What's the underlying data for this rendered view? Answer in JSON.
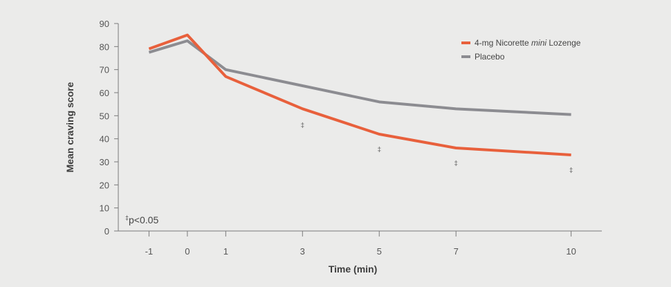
{
  "chart_data": {
    "type": "line",
    "title": "",
    "xlabel": "Time (min)",
    "ylabel": "Mean craving score",
    "x": [
      -1,
      0,
      1,
      3,
      5,
      7,
      10
    ],
    "x_ticks": [
      "-1",
      "0",
      "1",
      "3",
      "5",
      "7",
      "10"
    ],
    "y_ticks": [
      "0",
      "10",
      "20",
      "30",
      "40",
      "50",
      "60",
      "70",
      "80",
      "90"
    ],
    "xlim": [
      -1.8,
      10.8
    ],
    "ylim": [
      0,
      90
    ],
    "grid": false,
    "legend_position": "top-right",
    "series": [
      {
        "name": "4-mg Nicorette mini Lozenge",
        "name_parts": [
          {
            "text": "4-mg Nicorette ",
            "italic": false
          },
          {
            "text": "mini",
            "italic": true
          },
          {
            "text": " Lozenge",
            "italic": false
          }
        ],
        "color": "#e8603c",
        "values": [
          79,
          85,
          67,
          53,
          42,
          36,
          33
        ]
      },
      {
        "name": "Placebo",
        "name_parts": [
          {
            "text": "Placebo",
            "italic": false
          }
        ],
        "color": "#8c8c91",
        "values": [
          77.5,
          82.5,
          70,
          63,
          56,
          53,
          50.5
        ]
      }
    ],
    "significance": {
      "symbol": "‡",
      "at_x": [
        3,
        5,
        7,
        10
      ],
      "y": [
        46,
        35.5,
        29.5,
        26.5
      ]
    },
    "footnote": {
      "symbol": "‡",
      "text": "p<0.05"
    }
  }
}
